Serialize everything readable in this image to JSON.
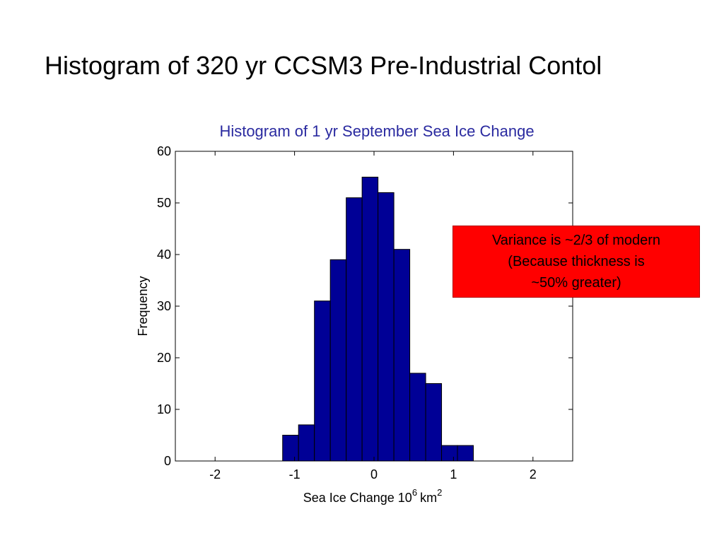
{
  "slide": {
    "title": "Histogram of 320 yr CCSM3 Pre-Industrial Contol"
  },
  "callout": {
    "text": "Variance is ~2/3 of modern\n(Because thickness is\n~50% greater)",
    "background": "#ff0000"
  },
  "chart_data": {
    "type": "bar",
    "title": "Histogram of 1 yr September Sea Ice Change",
    "title_color": "#2a2aa0",
    "xlabel": "Sea Ice Change 10",
    "xlabel_exp": "6",
    "xlabel_unit": "km",
    "xlabel_unit_exp": "2",
    "ylabel": "Frequency",
    "xlim": [
      -2.5,
      2.5
    ],
    "ylim": [
      0,
      60
    ],
    "xticks": [
      -2,
      -1,
      0,
      1,
      2
    ],
    "yticks": [
      0,
      10,
      20,
      30,
      40,
      50,
      60
    ],
    "grid": false,
    "bar_color": "#000096",
    "bin_width": 0.2,
    "bin_centers": [
      -1.05,
      -0.85,
      -0.65,
      -0.45,
      -0.25,
      -0.05,
      0.15,
      0.35,
      0.55,
      0.75,
      0.95,
      1.15
    ],
    "values": [
      5,
      7,
      31,
      39,
      51,
      55,
      52,
      41,
      17,
      15,
      3,
      3
    ]
  }
}
